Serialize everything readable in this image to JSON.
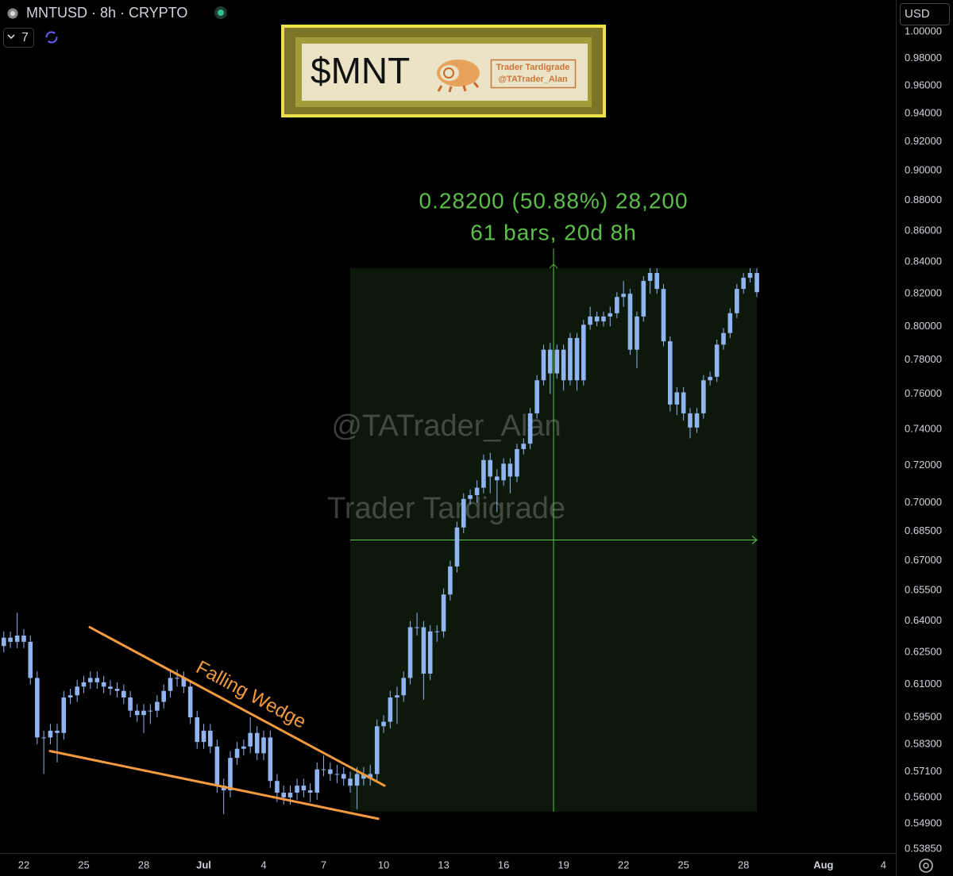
{
  "header": {
    "symbol": "MNTUSD · 8h · CRYPTO",
    "interval_count": "7",
    "currency": "USD"
  },
  "banner": {
    "ticker": "$MNT",
    "author": "Trader Tardigrade",
    "handle": "@TATrader_Alan"
  },
  "watermark": [
    "@TATrader_Alan",
    "Trader Tardigrade"
  ],
  "chart_data": {
    "type": "candlestick",
    "color": "#8fb4f0",
    "log_scale": true,
    "grid": false,
    "ylim": [
      0.5369,
      1.006
    ],
    "yticks": [
      {
        "value": 1.0,
        "label": "1.00000"
      },
      {
        "value": 0.98,
        "label": "0.98000"
      },
      {
        "value": 0.96,
        "label": "0.96000"
      },
      {
        "value": 0.94,
        "label": "0.94000"
      },
      {
        "value": 0.92,
        "label": "0.92000"
      },
      {
        "value": 0.9,
        "label": "0.90000"
      },
      {
        "value": 0.88,
        "label": "0.88000"
      },
      {
        "value": 0.86,
        "label": "0.86000"
      },
      {
        "value": 0.84,
        "label": "0.84000"
      },
      {
        "value": 0.82,
        "label": "0.82000"
      },
      {
        "value": 0.8,
        "label": "0.80000"
      },
      {
        "value": 0.78,
        "label": "0.78000"
      },
      {
        "value": 0.76,
        "label": "0.76000"
      },
      {
        "value": 0.74,
        "label": "0.74000"
      },
      {
        "value": 0.72,
        "label": "0.72000"
      },
      {
        "value": 0.7,
        "label": "0.70000"
      },
      {
        "value": 0.685,
        "label": "0.68500"
      },
      {
        "value": 0.67,
        "label": "0.67000"
      },
      {
        "value": 0.655,
        "label": "0.65500"
      },
      {
        "value": 0.64,
        "label": "0.64000"
      },
      {
        "value": 0.625,
        "label": "0.62500"
      },
      {
        "value": 0.61,
        "label": "0.61000"
      },
      {
        "value": 0.595,
        "label": "0.59500"
      },
      {
        "value": 0.583,
        "label": "0.58300"
      },
      {
        "value": 0.571,
        "label": "0.57100"
      },
      {
        "value": 0.56,
        "label": "0.56000"
      },
      {
        "value": 0.549,
        "label": "0.54900"
      },
      {
        "value": 0.5385,
        "label": "0.53850"
      }
    ],
    "xlim": [
      -1.19,
      43.62
    ],
    "xticks": [
      {
        "value": 0,
        "label": "22"
      },
      {
        "value": 3,
        "label": "25"
      },
      {
        "value": 6,
        "label": "28"
      },
      {
        "value": 9,
        "label": "Jul"
      },
      {
        "value": 12,
        "label": "4"
      },
      {
        "value": 15,
        "label": "7"
      },
      {
        "value": 18,
        "label": "10"
      },
      {
        "value": 21,
        "label": "13"
      },
      {
        "value": 24,
        "label": "16"
      },
      {
        "value": 27,
        "label": "19"
      },
      {
        "value": 30,
        "label": "22"
      },
      {
        "value": 33,
        "label": "25"
      },
      {
        "value": 36,
        "label": "28"
      },
      {
        "value": 40,
        "label": "Aug"
      },
      {
        "value": 43,
        "label": "4"
      }
    ],
    "x": [
      -1,
      -0.67,
      -0.33,
      0,
      0.33,
      0.67,
      1,
      1.33,
      1.67,
      2,
      2.33,
      2.67,
      3,
      3.33,
      3.67,
      4,
      4.33,
      4.67,
      5,
      5.33,
      5.67,
      6,
      6.33,
      6.67,
      7,
      7.33,
      7.67,
      8,
      8.33,
      8.67,
      9,
      9.33,
      9.67,
      10,
      10.33,
      10.67,
      11,
      11.33,
      11.67,
      12,
      12.33,
      12.67,
      13,
      13.33,
      13.67,
      14,
      14.33,
      14.67,
      15,
      15.33,
      15.67,
      16,
      16.33,
      16.67,
      17,
      17.33,
      17.67,
      18,
      18.33,
      18.67,
      19,
      19.33,
      19.67,
      20,
      20.33,
      20.67,
      21,
      21.33,
      21.67,
      22,
      22.33,
      22.67,
      23,
      23.33,
      23.67,
      24,
      24.33,
      24.67,
      25,
      25.33,
      25.67,
      26,
      26.33,
      26.67,
      27,
      27.33,
      27.67,
      28,
      28.33,
      28.67,
      29,
      29.33,
      29.67,
      30,
      30.33,
      30.67,
      31,
      31.33,
      31.67,
      32,
      32.33,
      32.67,
      33,
      33.33,
      33.67,
      34,
      34.33,
      34.67,
      35,
      35.33,
      35.67,
      36,
      36.33,
      36.67
    ],
    "open": [
      0.628,
      0.632,
      0.63,
      0.633,
      0.63,
      0.613,
      0.586,
      0.586,
      0.589,
      0.588,
      0.604,
      0.605,
      0.609,
      0.611,
      0.613,
      0.611,
      0.609,
      0.608,
      0.607,
      0.604,
      0.598,
      0.596,
      0.598,
      0.598,
      0.602,
      0.607,
      0.613,
      0.613,
      0.609,
      0.595,
      0.584,
      0.589,
      0.582,
      0.565,
      0.563,
      0.577,
      0.581,
      0.582,
      0.588,
      0.579,
      0.586,
      0.567,
      0.562,
      0.56,
      0.562,
      0.565,
      0.563,
      0.562,
      0.572,
      0.572,
      0.57,
      0.57,
      0.568,
      0.565,
      0.57,
      0.568,
      0.57,
      0.591,
      0.593,
      0.604,
      0.605,
      0.613,
      0.637,
      0.637,
      0.615,
      0.635,
      0.635,
      0.653,
      0.667,
      0.687,
      0.702,
      0.704,
      0.708,
      0.723,
      0.714,
      0.712,
      0.721,
      0.714,
      0.729,
      0.732,
      0.749,
      0.768,
      0.786,
      0.772,
      0.786,
      0.768,
      0.793,
      0.768,
      0.801,
      0.806,
      0.803,
      0.806,
      0.808,
      0.818,
      0.82,
      0.786,
      0.806,
      0.828,
      0.833,
      0.823,
      0.791,
      0.754,
      0.761,
      0.749,
      0.741,
      0.749,
      0.768,
      0.77,
      0.789,
      0.796,
      0.808,
      0.823,
      0.83,
      0.833
    ],
    "high": [
      0.635,
      0.635,
      0.644,
      0.636,
      0.633,
      0.616,
      0.589,
      0.592,
      0.592,
      0.607,
      0.608,
      0.612,
      0.614,
      0.616,
      0.616,
      0.614,
      0.612,
      0.611,
      0.61,
      0.607,
      0.601,
      0.601,
      0.601,
      0.605,
      0.61,
      0.616,
      0.617,
      0.616,
      0.612,
      0.598,
      0.592,
      0.592,
      0.585,
      0.568,
      0.58,
      0.584,
      0.585,
      0.595,
      0.591,
      0.589,
      0.589,
      0.57,
      0.565,
      0.565,
      0.568,
      0.568,
      0.566,
      0.575,
      0.578,
      0.575,
      0.574,
      0.573,
      0.571,
      0.573,
      0.573,
      0.574,
      0.594,
      0.596,
      0.607,
      0.609,
      0.616,
      0.64,
      0.644,
      0.64,
      0.638,
      0.638,
      0.656,
      0.67,
      0.69,
      0.705,
      0.707,
      0.712,
      0.726,
      0.727,
      0.718,
      0.724,
      0.724,
      0.732,
      0.735,
      0.752,
      0.771,
      0.789,
      0.79,
      0.789,
      0.789,
      0.796,
      0.796,
      0.804,
      0.812,
      0.809,
      0.809,
      0.812,
      0.821,
      0.828,
      0.823,
      0.809,
      0.831,
      0.836,
      0.836,
      0.826,
      0.794,
      0.764,
      0.764,
      0.752,
      0.752,
      0.771,
      0.773,
      0.792,
      0.799,
      0.811,
      0.826,
      0.833,
      0.836,
      0.836
    ],
    "low": [
      0.625,
      0.627,
      0.627,
      0.627,
      0.61,
      0.583,
      0.57,
      0.583,
      0.575,
      0.585,
      0.601,
      0.602,
      0.606,
      0.608,
      0.608,
      0.606,
      0.605,
      0.604,
      0.601,
      0.595,
      0.593,
      0.588,
      0.592,
      0.595,
      0.599,
      0.604,
      0.609,
      0.606,
      0.592,
      0.581,
      0.581,
      0.579,
      0.562,
      0.553,
      0.56,
      0.574,
      0.578,
      0.579,
      0.576,
      0.576,
      0.564,
      0.558,
      0.557,
      0.557,
      0.559,
      0.56,
      0.558,
      0.559,
      0.569,
      0.567,
      0.566,
      0.565,
      0.562,
      0.555,
      0.565,
      0.565,
      0.567,
      0.588,
      0.59,
      0.592,
      0.602,
      0.61,
      0.633,
      0.603,
      0.612,
      0.63,
      0.632,
      0.65,
      0.664,
      0.684,
      0.699,
      0.7,
      0.705,
      0.705,
      0.695,
      0.709,
      0.705,
      0.711,
      0.726,
      0.729,
      0.746,
      0.765,
      0.76,
      0.769,
      0.762,
      0.765,
      0.762,
      0.765,
      0.798,
      0.8,
      0.8,
      0.8,
      0.805,
      0.812,
      0.783,
      0.775,
      0.803,
      0.82,
      0.82,
      0.788,
      0.75,
      0.748,
      0.745,
      0.735,
      0.738,
      0.746,
      0.765,
      0.767,
      0.786,
      0.793,
      0.805,
      0.82,
      0.827,
      0.818
    ],
    "close": [
      0.632,
      0.63,
      0.633,
      0.63,
      0.613,
      0.586,
      0.586,
      0.589,
      0.588,
      0.604,
      0.605,
      0.609,
      0.611,
      0.613,
      0.611,
      0.609,
      0.608,
      0.607,
      0.604,
      0.598,
      0.596,
      0.598,
      0.598,
      0.602,
      0.607,
      0.613,
      0.613,
      0.609,
      0.595,
      0.584,
      0.589,
      0.582,
      0.565,
      0.563,
      0.577,
      0.581,
      0.582,
      0.588,
      0.579,
      0.586,
      0.567,
      0.562,
      0.56,
      0.562,
      0.565,
      0.563,
      0.562,
      0.572,
      0.572,
      0.57,
      0.57,
      0.568,
      0.565,
      0.57,
      0.568,
      0.57,
      0.591,
      0.593,
      0.604,
      0.605,
      0.613,
      0.637,
      0.637,
      0.615,
      0.635,
      0.635,
      0.653,
      0.667,
      0.687,
      0.702,
      0.704,
      0.708,
      0.723,
      0.714,
      0.712,
      0.721,
      0.714,
      0.729,
      0.732,
      0.749,
      0.768,
      0.786,
      0.772,
      0.786,
      0.768,
      0.793,
      0.768,
      0.801,
      0.806,
      0.803,
      0.806,
      0.808,
      0.818,
      0.82,
      0.786,
      0.806,
      0.828,
      0.833,
      0.823,
      0.791,
      0.754,
      0.761,
      0.749,
      0.741,
      0.749,
      0.768,
      0.77,
      0.789,
      0.796,
      0.808,
      0.823,
      0.83,
      0.833,
      0.821
    ],
    "measure": {
      "from": 0.554,
      "to": 0.836,
      "x_start": 16.33,
      "x_end": 36.67,
      "color": "#5cbf4a",
      "label": "0.28200 (50.88%) 28,200",
      "sublabel": "61 bars, 20d 8h"
    },
    "wedge": {
      "label": "Falling Wedge",
      "color": "#f29a3f",
      "upper": {
        "x": [
          3.3,
          18.04
        ],
        "y": [
          0.637,
          0.565
        ]
      },
      "lower": {
        "x": [
          1.31,
          17.73
        ],
        "y": [
          0.58,
          0.551
        ]
      }
    }
  }
}
